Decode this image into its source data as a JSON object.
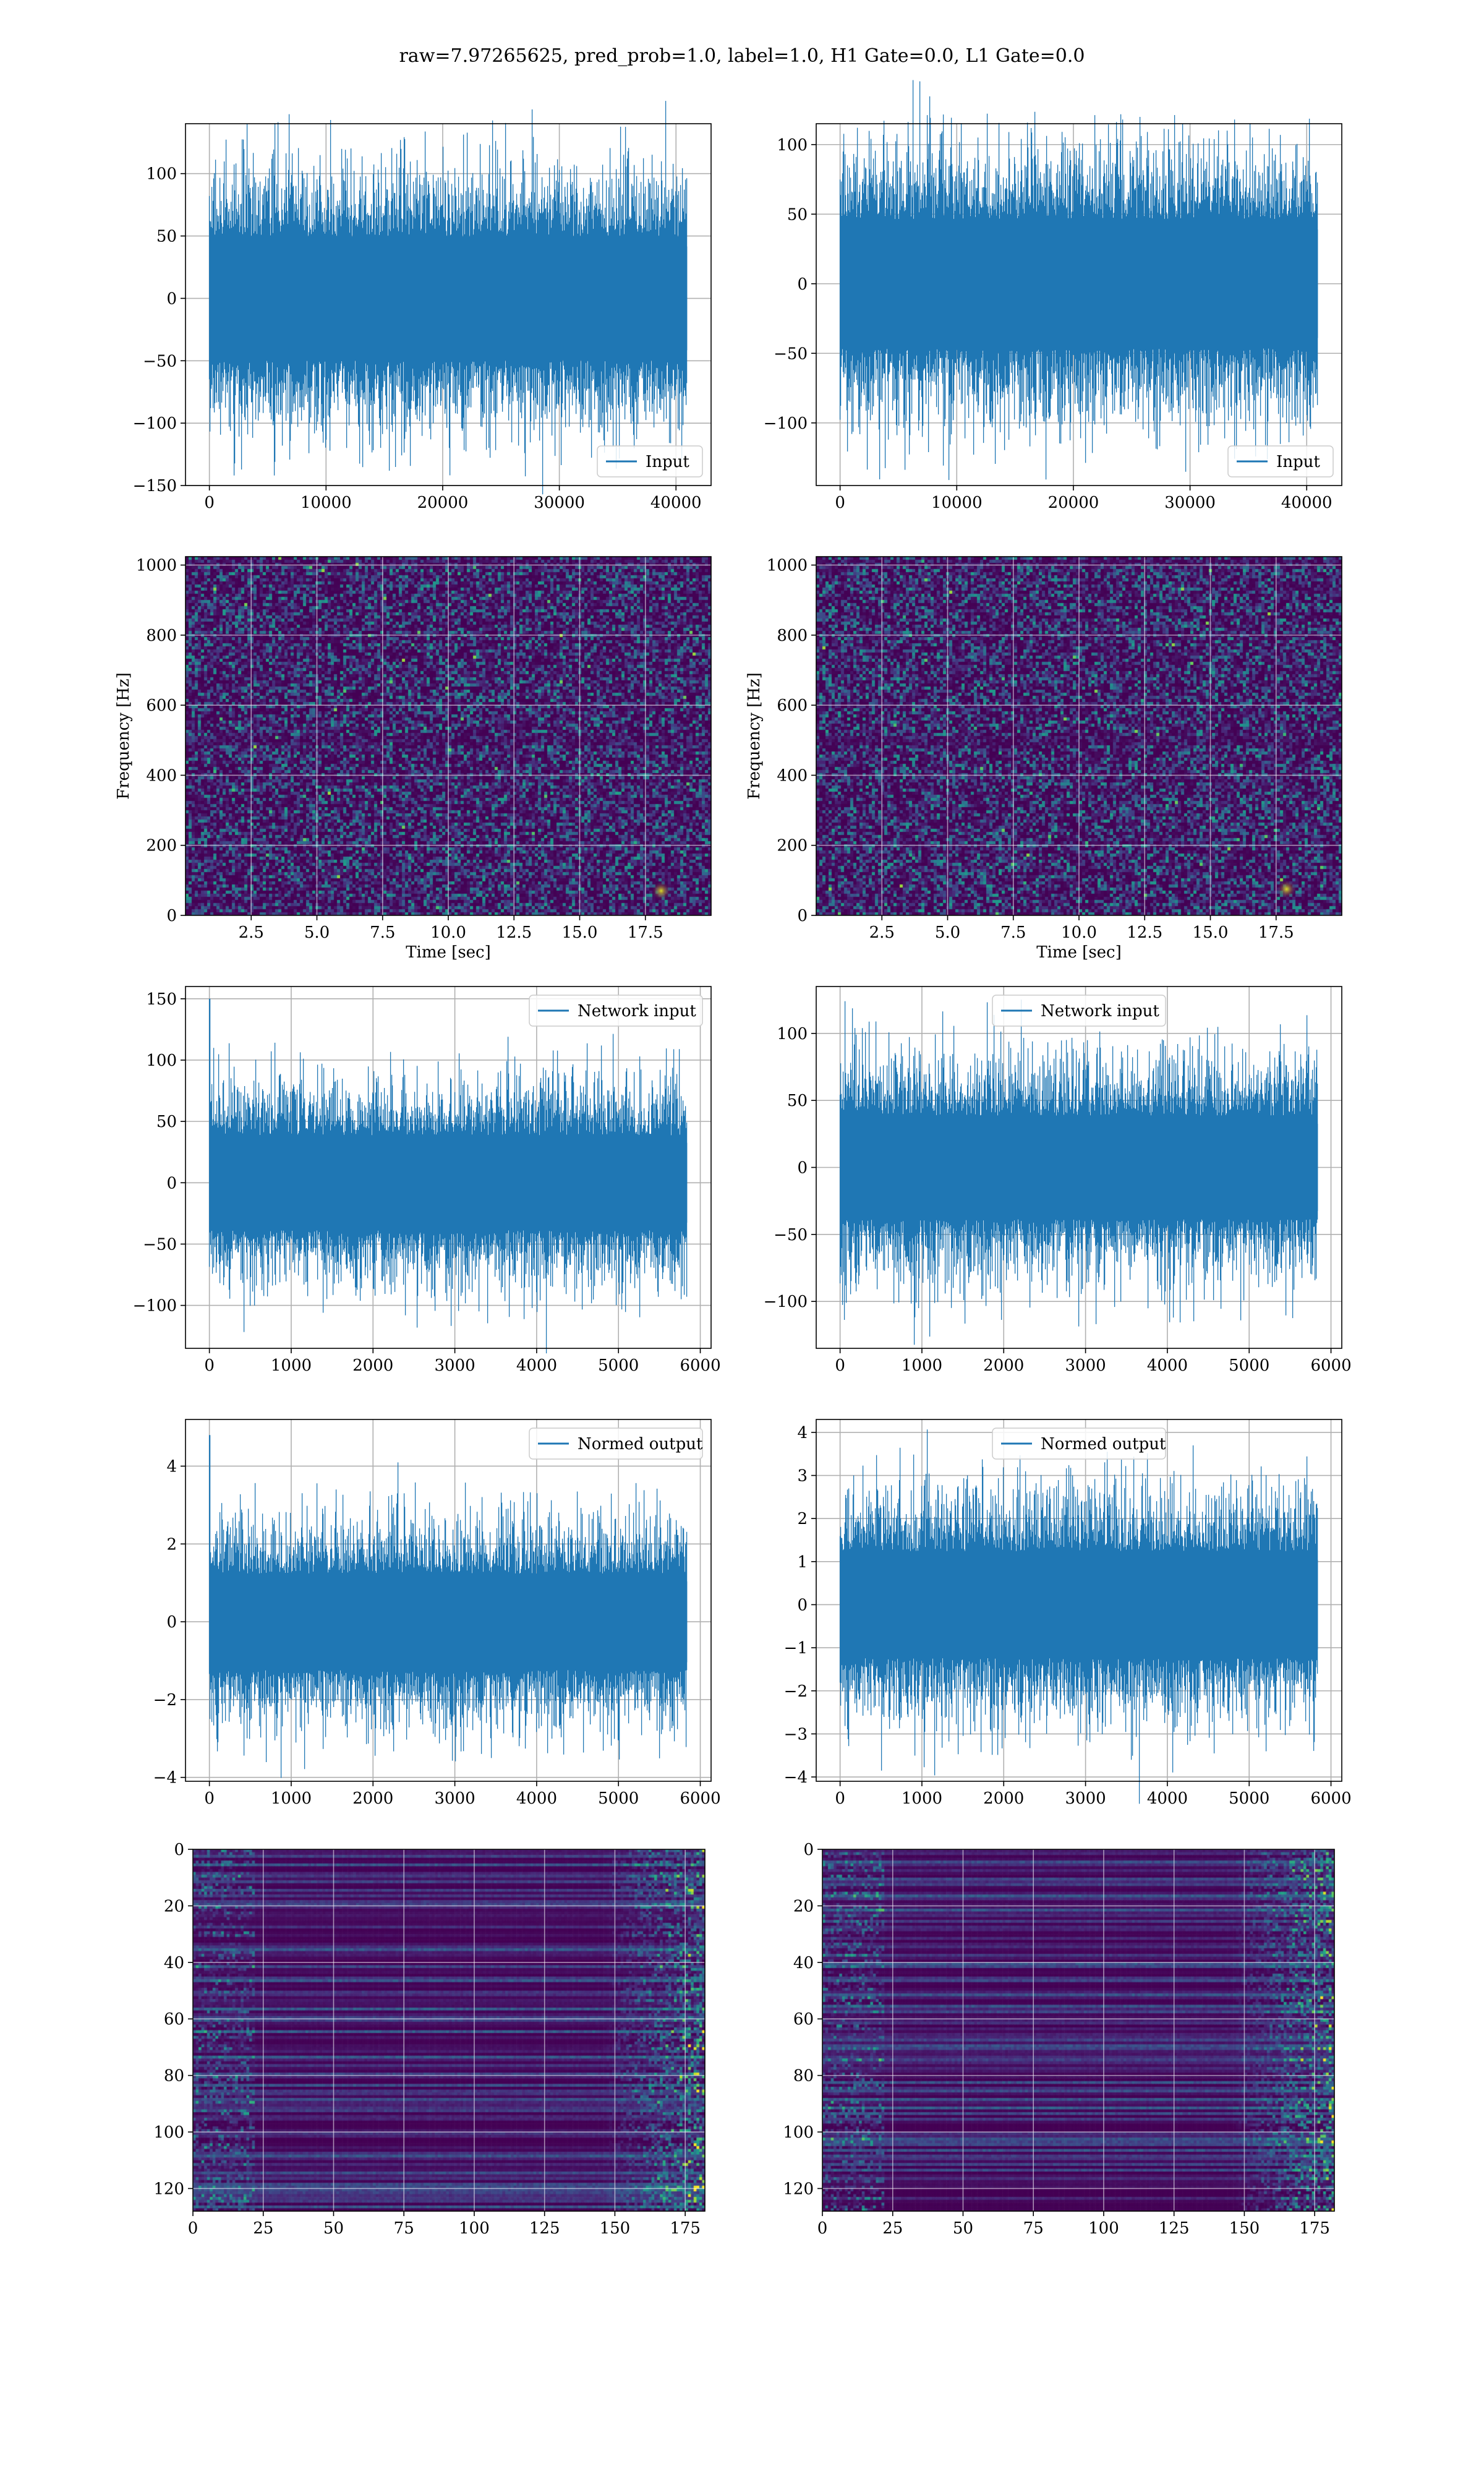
{
  "figure": {
    "suptitle": "raw=7.97265625, pred_prob=1.0, label=1.0, H1 Gate=0.0, L1 Gate=0.0"
  },
  "colors": {
    "series": "#1f77b4",
    "viridis_low": "#440154",
    "viridis_mid": "#21918c",
    "viridis_high": "#fde725",
    "grid": "#b0b0b0"
  },
  "chart_data": [
    {
      "id": "input-h1",
      "type": "line",
      "series_name": "Input",
      "legend_pos": "lower-right",
      "x_range": [
        0,
        40960
      ],
      "xlim": [
        -2048,
        43008
      ],
      "ylim": [
        -150,
        140
      ],
      "amp": 32,
      "extreme": 130,
      "xticks": [
        0,
        10000,
        20000,
        30000,
        40000
      ],
      "yticks": [
        -150,
        -100,
        -50,
        0,
        50,
        100
      ],
      "xticklabels": [
        "0",
        "10000",
        "20000",
        "30000",
        "40000"
      ],
      "yticklabels": [
        "−150",
        "−100",
        "−50",
        "0",
        "50",
        "100"
      ],
      "xlabel": "",
      "ylabel": ""
    },
    {
      "id": "input-l1",
      "type": "line",
      "series_name": "Input",
      "legend_pos": "lower-right",
      "x_range": [
        0,
        40960
      ],
      "xlim": [
        -2048,
        43008
      ],
      "ylim": [
        -145,
        115
      ],
      "amp": 30,
      "extreme": 120,
      "xticks": [
        0,
        10000,
        20000,
        30000,
        40000
      ],
      "yticks": [
        -100,
        -50,
        0,
        50,
        100
      ],
      "xticklabels": [
        "0",
        "10000",
        "20000",
        "30000",
        "40000"
      ],
      "yticklabels": [
        "−100",
        "−50",
        "0",
        "50",
        "100"
      ],
      "xlabel": "",
      "ylabel": ""
    },
    {
      "id": "spec-h1",
      "type": "heatmap",
      "variant": "spectrogram",
      "xlim": [
        0,
        20
      ],
      "ylim": [
        0,
        1024
      ],
      "xticks": [
        2.5,
        5,
        7.5,
        10,
        12.5,
        15,
        17.5
      ],
      "yticks": [
        0,
        200,
        400,
        600,
        800,
        1000
      ],
      "xticklabels": [
        "2.5",
        "5.0",
        "7.5",
        "10.0",
        "12.5",
        "15.0",
        "17.5"
      ],
      "yticklabels": [
        "0",
        "200",
        "400",
        "600",
        "800",
        "1000"
      ],
      "xlabel": "Time [sec]",
      "ylabel": "Frequency [Hz]",
      "hot_spot": [
        18.1,
        70
      ]
    },
    {
      "id": "spec-l1",
      "type": "heatmap",
      "variant": "spectrogram",
      "xlim": [
        0,
        20
      ],
      "ylim": [
        0,
        1024
      ],
      "xticks": [
        2.5,
        5,
        7.5,
        10,
        12.5,
        15,
        17.5
      ],
      "yticks": [
        0,
        200,
        400,
        600,
        800,
        1000
      ],
      "xticklabels": [
        "2.5",
        "5.0",
        "7.5",
        "10.0",
        "12.5",
        "15.0",
        "17.5"
      ],
      "yticklabels": [
        "0",
        "200",
        "400",
        "600",
        "800",
        "1000"
      ],
      "xlabel": "Time [sec]",
      "ylabel": "Frequency [Hz]",
      "hot_spot": [
        17.9,
        75
      ]
    },
    {
      "id": "net-h1",
      "type": "line",
      "series_name": "Network input",
      "legend_pos": "upper-right",
      "x_range": [
        0,
        5840
      ],
      "xlim": [
        -292,
        6132
      ],
      "ylim": [
        -135,
        160
      ],
      "amp": 25,
      "extreme": 110,
      "first_spike": 150,
      "xticks": [
        0,
        1000,
        2000,
        3000,
        4000,
        5000,
        6000
      ],
      "yticks": [
        -100,
        -50,
        0,
        50,
        100,
        150
      ],
      "xticklabels": [
        "0",
        "1000",
        "2000",
        "3000",
        "4000",
        "5000",
        "6000"
      ],
      "yticklabels": [
        "−100",
        "−50",
        "0",
        "50",
        "100",
        "150"
      ],
      "xlabel": "",
      "ylabel": ""
    },
    {
      "id": "net-l1",
      "type": "line",
      "series_name": "Network input",
      "legend_pos": "upper-center",
      "x_range": [
        0,
        5840
      ],
      "xlim": [
        -292,
        6132
      ],
      "ylim": [
        -135,
        135
      ],
      "amp": 25,
      "extreme": 125,
      "xticks": [
        0,
        1000,
        2000,
        3000,
        4000,
        5000,
        6000
      ],
      "yticks": [
        -100,
        -50,
        0,
        50,
        100
      ],
      "xticklabels": [
        "0",
        "1000",
        "2000",
        "3000",
        "4000",
        "5000",
        "6000"
      ],
      "yticklabels": [
        "−100",
        "−50",
        "0",
        "50",
        "100"
      ],
      "xlabel": "",
      "ylabel": ""
    },
    {
      "id": "norm-h1",
      "type": "line",
      "series_name": "Normed output",
      "legend_pos": "upper-right",
      "x_range": [
        0,
        5840
      ],
      "xlim": [
        -292,
        6132
      ],
      "ylim": [
        -4.1,
        5.2
      ],
      "amp": 0.8,
      "extreme": 3.6,
      "first_spike": 4.8,
      "xticks": [
        0,
        1000,
        2000,
        3000,
        4000,
        5000,
        6000
      ],
      "yticks": [
        -4,
        -2,
        0,
        2,
        4
      ],
      "xticklabels": [
        "0",
        "1000",
        "2000",
        "3000",
        "4000",
        "5000",
        "6000"
      ],
      "yticklabels": [
        "−4",
        "−2",
        "0",
        "2",
        "4"
      ],
      "xlabel": "",
      "ylabel": ""
    },
    {
      "id": "norm-l1",
      "type": "line",
      "series_name": "Normed output",
      "legend_pos": "upper-center",
      "x_range": [
        0,
        5840
      ],
      "xlim": [
        -292,
        6132
      ],
      "ylim": [
        -4.1,
        4.3
      ],
      "amp": 0.8,
      "extreme": 4.0,
      "xticks": [
        0,
        1000,
        2000,
        3000,
        4000,
        5000,
        6000
      ],
      "yticks": [
        -4,
        -3,
        -2,
        -1,
        0,
        1,
        2,
        3,
        4
      ],
      "xticklabels": [
        "0",
        "1000",
        "2000",
        "3000",
        "4000",
        "5000",
        "6000"
      ],
      "yticklabels": [
        "−4",
        "−3",
        "−2",
        "−1",
        "0",
        "1",
        "2",
        "3",
        "4"
      ],
      "xlabel": "",
      "ylabel": ""
    },
    {
      "id": "feat-h1",
      "type": "heatmap",
      "variant": "features",
      "xlim": [
        0,
        182
      ],
      "ylim": [
        128,
        0
      ],
      "xticks": [
        0,
        25,
        50,
        75,
        100,
        125,
        150,
        175
      ],
      "yticks": [
        0,
        20,
        40,
        60,
        80,
        100,
        120
      ],
      "xticklabels": [
        "0",
        "25",
        "50",
        "75",
        "100",
        "125",
        "150",
        "175"
      ],
      "yticklabels": [
        "0",
        "20",
        "40",
        "60",
        "80",
        "100",
        "120"
      ],
      "xlabel": "",
      "ylabel": ""
    },
    {
      "id": "feat-l1",
      "type": "heatmap",
      "variant": "features",
      "xlim": [
        0,
        182
      ],
      "ylim": [
        128,
        0
      ],
      "xticks": [
        0,
        25,
        50,
        75,
        100,
        125,
        150,
        175
      ],
      "yticks": [
        0,
        20,
        40,
        60,
        80,
        100,
        120
      ],
      "xticklabels": [
        "0",
        "25",
        "50",
        "75",
        "100",
        "125",
        "150",
        "175"
      ],
      "yticklabels": [
        "0",
        "20",
        "40",
        "60",
        "80",
        "100",
        "120"
      ],
      "xlabel": "",
      "ylabel": ""
    }
  ]
}
